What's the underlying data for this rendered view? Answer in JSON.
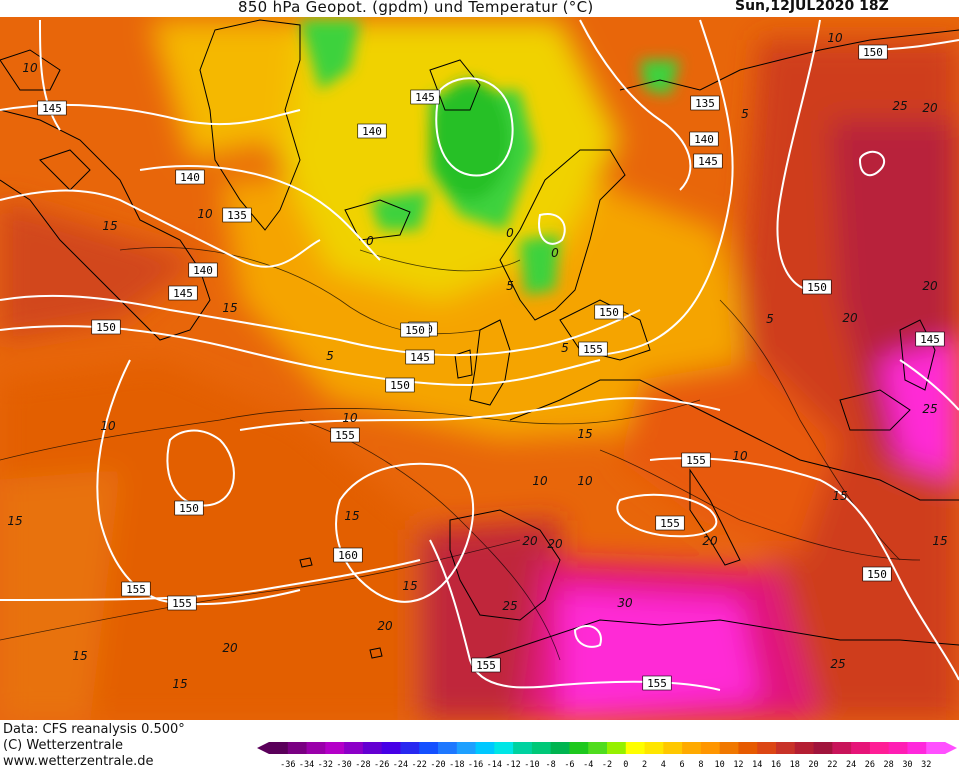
{
  "header": {
    "title": "850 hPa Geopot. (gpdm) und Temperatur (°C)",
    "valid_time": "Sun,12JUL2020 18Z"
  },
  "footer": {
    "data_source": "Data: CFS reanalysis 0.500°",
    "copyright": "(C) Wetterzentrale",
    "website": "www.wetterzentrale.de"
  },
  "colors": {
    "geopotential_contours": "#ffffff",
    "temperature_contours": "#000000",
    "coastlines": "#000000"
  },
  "legend": {
    "ticks": [
      "-36",
      "-34",
      "-32",
      "-30",
      "-28",
      "-26",
      "-24",
      "-22",
      "-20",
      "-18",
      "-16",
      "-14",
      "-12",
      "-10",
      "-8",
      "-6",
      "-4",
      "-2",
      "0",
      "2",
      "4",
      "6",
      "8",
      "10",
      "12",
      "14",
      "16",
      "18",
      "20",
      "22",
      "24",
      "26",
      "28",
      "30",
      "32"
    ],
    "colors": [
      "#5a005a",
      "#7a0082",
      "#9a00aa",
      "#b400c8",
      "#8c00c8",
      "#6400d2",
      "#4600e6",
      "#2828f0",
      "#1450ff",
      "#1e78ff",
      "#1ea0ff",
      "#00c8ff",
      "#00e6e6",
      "#00d2a0",
      "#00c878",
      "#00b450",
      "#1ec81e",
      "#50dc1e",
      "#96f000",
      "#ffff00",
      "#ffe600",
      "#ffc800",
      "#ffaa00",
      "#ff9600",
      "#f07800",
      "#e65a00",
      "#dc4614",
      "#c83228",
      "#b41e32",
      "#a0143c",
      "#c8145a",
      "#e61478",
      "#ff1e96",
      "#ff1eb4",
      "#ff28dc",
      "#ff50ff"
    ]
  },
  "geopotential_labels": [
    {
      "text": "145"
    },
    {
      "text": "145"
    },
    {
      "text": "140"
    },
    {
      "text": "135"
    },
    {
      "text": "140"
    },
    {
      "text": "145"
    },
    {
      "text": "150"
    },
    {
      "text": "135"
    },
    {
      "text": "140"
    },
    {
      "text": "145"
    },
    {
      "text": "150"
    },
    {
      "text": "140"
    },
    {
      "text": "145"
    },
    {
      "text": "150"
    },
    {
      "text": "155"
    },
    {
      "text": "150"
    },
    {
      "text": "155"
    },
    {
      "text": "150"
    },
    {
      "text": "145"
    },
    {
      "text": "155"
    },
    {
      "text": "155"
    },
    {
      "text": "150"
    },
    {
      "text": "160"
    },
    {
      "text": "155"
    },
    {
      "text": "155"
    },
    {
      "text": "150"
    },
    {
      "text": "155"
    },
    {
      "text": "155"
    },
    {
      "text": "140"
    },
    {
      "text": "150"
    }
  ],
  "temperature_labels": [
    {
      "text": "10"
    },
    {
      "text": "10"
    },
    {
      "text": "15"
    },
    {
      "text": "10"
    },
    {
      "text": "15"
    },
    {
      "text": "5"
    },
    {
      "text": "0"
    },
    {
      "text": "0"
    },
    {
      "text": "0"
    },
    {
      "text": "5"
    },
    {
      "text": "5"
    },
    {
      "text": "5"
    },
    {
      "text": "10"
    },
    {
      "text": "10"
    },
    {
      "text": "10"
    },
    {
      "text": "15"
    },
    {
      "text": "15"
    },
    {
      "text": "20"
    },
    {
      "text": "20"
    },
    {
      "text": "20"
    },
    {
      "text": "25"
    },
    {
      "text": "25"
    },
    {
      "text": "30"
    },
    {
      "text": "25"
    },
    {
      "text": "20"
    },
    {
      "text": "15"
    },
    {
      "text": "15"
    },
    {
      "text": "20"
    },
    {
      "text": "15"
    },
    {
      "text": "5"
    },
    {
      "text": "10"
    },
    {
      "text": "20"
    },
    {
      "text": "20"
    },
    {
      "text": "15"
    },
    {
      "text": "25"
    },
    {
      "text": "20"
    },
    {
      "text": "15"
    },
    {
      "text": "10"
    },
    {
      "text": "15"
    }
  ]
}
